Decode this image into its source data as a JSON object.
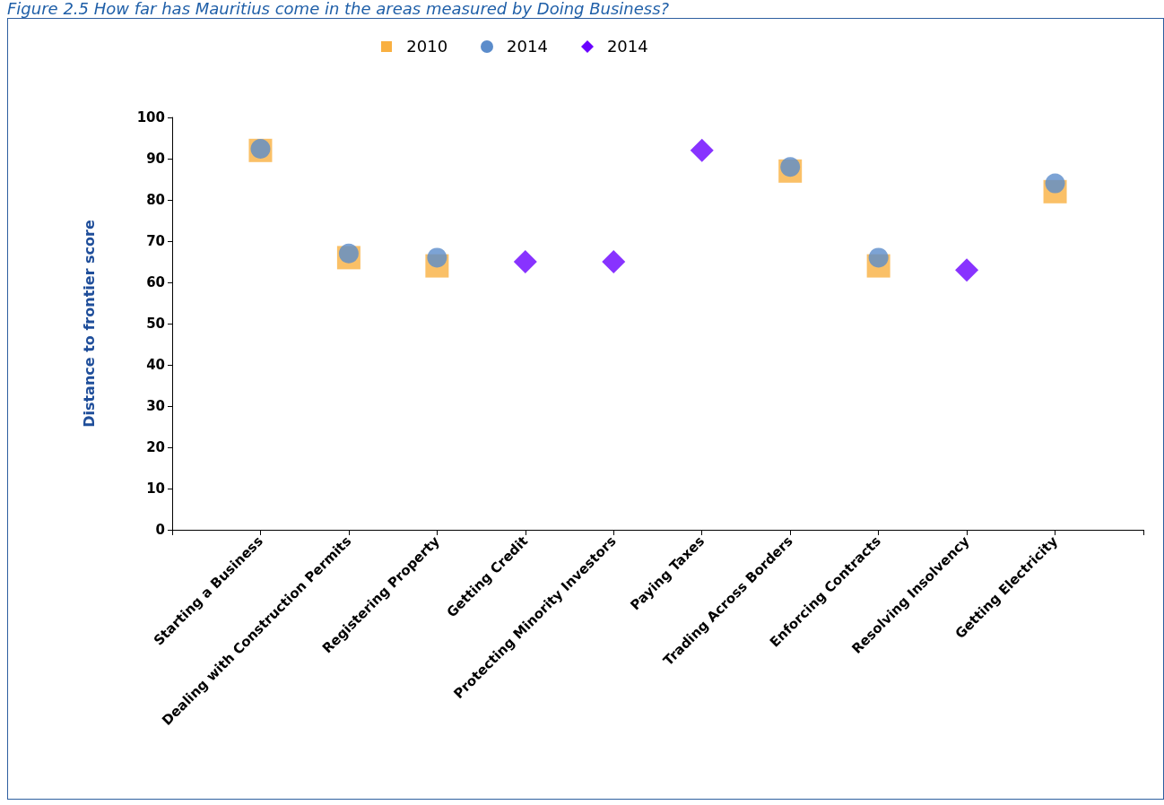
{
  "chart_data": {
    "type": "scatter",
    "title": "Figure 2.5 How far has Mauritius come in the areas measured by Doing Business?",
    "ylabel": "Distance to frontier score",
    "categories": [
      "Starting a Business",
      "Dealing with Construction Permits",
      "Registering Property",
      "Getting Credit",
      "Protecting Minority Investors",
      "Paying Taxes",
      "Trading Across Borders",
      "Enforcing Contracts",
      "Resolving Insolvency",
      "Getting Electricity"
    ],
    "series": [
      {
        "name": "2010",
        "color": "#f9b041",
        "marker": "square",
        "values": [
          92,
          66,
          64,
          null,
          null,
          null,
          87,
          64,
          null,
          82
        ]
      },
      {
        "name": "2014",
        "color": "#5b8ccb",
        "marker": "circle",
        "values": [
          92.4,
          67,
          66,
          null,
          null,
          null,
          88,
          66,
          null,
          84
        ]
      },
      {
        "name": "2014",
        "color": "#6a00ff",
        "marker": "diamond",
        "values": [
          null,
          null,
          null,
          65,
          65,
          92,
          null,
          null,
          63,
          null
        ]
      }
    ],
    "ylim": [
      0,
      100
    ],
    "yticks": [
      0,
      10,
      20,
      30,
      40,
      50,
      60,
      70,
      80,
      90,
      100
    ],
    "grid": false,
    "legend": "top"
  }
}
